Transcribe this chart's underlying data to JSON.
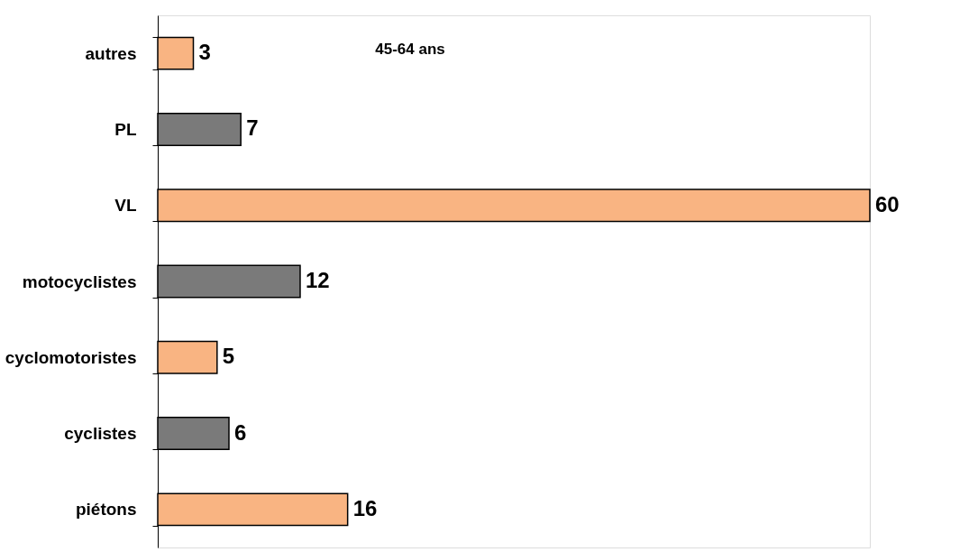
{
  "chart_data": {
    "type": "bar",
    "orientation": "horizontal",
    "title": "45-64 ans",
    "categories": [
      "autres",
      "PL",
      "VL",
      "motocyclistes",
      "cyclomotoristes",
      "cyclistes",
      "piétons"
    ],
    "values": [
      3,
      7,
      60,
      12,
      5,
      6,
      16
    ],
    "colors": [
      "#f9b482",
      "#7a7a7a",
      "#f9b482",
      "#7a7a7a",
      "#f9b482",
      "#7a7a7a",
      "#f9b482"
    ],
    "data_labels": true,
    "tick_labels": "y",
    "grid": false
  }
}
